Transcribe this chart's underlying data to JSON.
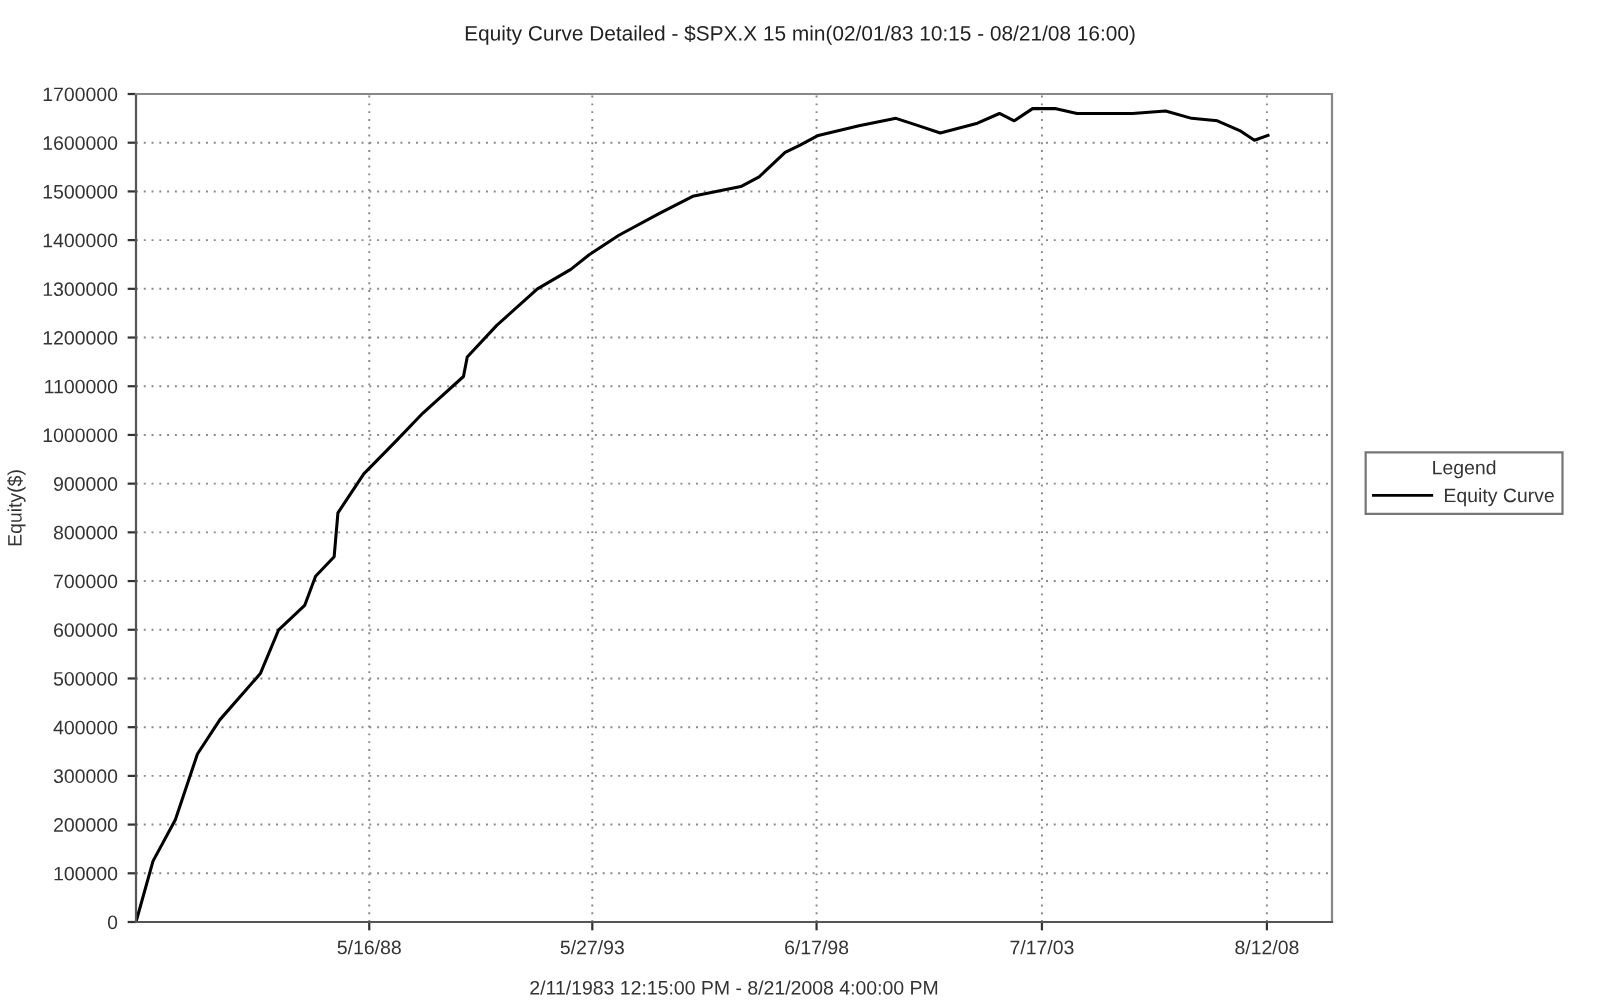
{
  "chart_data": {
    "type": "line",
    "title": "Equity Curve Detailed - $SPX.X 15 min(02/01/83 10:15 - 08/21/08 16:00)",
    "xlabel": "2/11/1983 12:15:00 PM - 8/21/2008 4:00:00 PM",
    "ylabel": "Equity($)",
    "legend_title": "Legend",
    "x": [
      "1983-02-11",
      "1983-07",
      "1984-01",
      "1984-07",
      "1985-01",
      "1985-12",
      "1986-05",
      "1986-12",
      "1987-03",
      "1987-08",
      "1987-09",
      "1988-04",
      "1989-01",
      "1989-08",
      "1990-07",
      "1990-08",
      "1991-04",
      "1992-03",
      "1992-12",
      "1993-05",
      "1994-01",
      "1994-12",
      "1995-09",
      "1996-10",
      "1997-03",
      "1997-10",
      "1998-02",
      "1998-07",
      "1999-06",
      "2000-04",
      "2000-10",
      "2001-04",
      "2002-02",
      "2002-08",
      "2002-12",
      "2003-05",
      "2003-11",
      "2004-05",
      "2005-08",
      "2006-05",
      "2006-12",
      "2007-07",
      "2008-01",
      "2008-05",
      "2008-08-21"
    ],
    "series": [
      {
        "name": "Equity Curve",
        "color": "#000000",
        "values": [
          0,
          125000,
          210000,
          345000,
          415000,
          510000,
          600000,
          650000,
          710000,
          750000,
          840000,
          920000,
          990000,
          1045000,
          1120000,
          1160000,
          1225000,
          1300000,
          1340000,
          1370000,
          1410000,
          1455000,
          1490000,
          1510000,
          1530000,
          1580000,
          1595000,
          1615000,
          1635000,
          1650000,
          1635000,
          1620000,
          1640000,
          1660000,
          1645000,
          1670000,
          1670000,
          1660000,
          1660000,
          1665000,
          1650000,
          1645000,
          1625000,
          1605000,
          1615000
        ]
      }
    ],
    "xlim": [
      "1983-02-11",
      "2010-01-30"
    ],
    "xticks": [
      {
        "value": "1988-05-16",
        "label": "5/16/88"
      },
      {
        "value": "1993-05-27",
        "label": "5/27/93"
      },
      {
        "value": "1998-06-17",
        "label": "6/17/98"
      },
      {
        "value": "2003-07-17",
        "label": "7/17/03"
      },
      {
        "value": "2008-08-12",
        "label": "8/12/08"
      }
    ],
    "ylim": [
      0,
      1700000
    ],
    "yticks": [
      0,
      100000,
      200000,
      300000,
      400000,
      500000,
      600000,
      700000,
      800000,
      900000,
      1000000,
      1100000,
      1200000,
      1300000,
      1400000,
      1500000,
      1600000,
      1700000
    ],
    "grid": true,
    "legend": "right",
    "line_style": "solid",
    "marker": "none"
  }
}
